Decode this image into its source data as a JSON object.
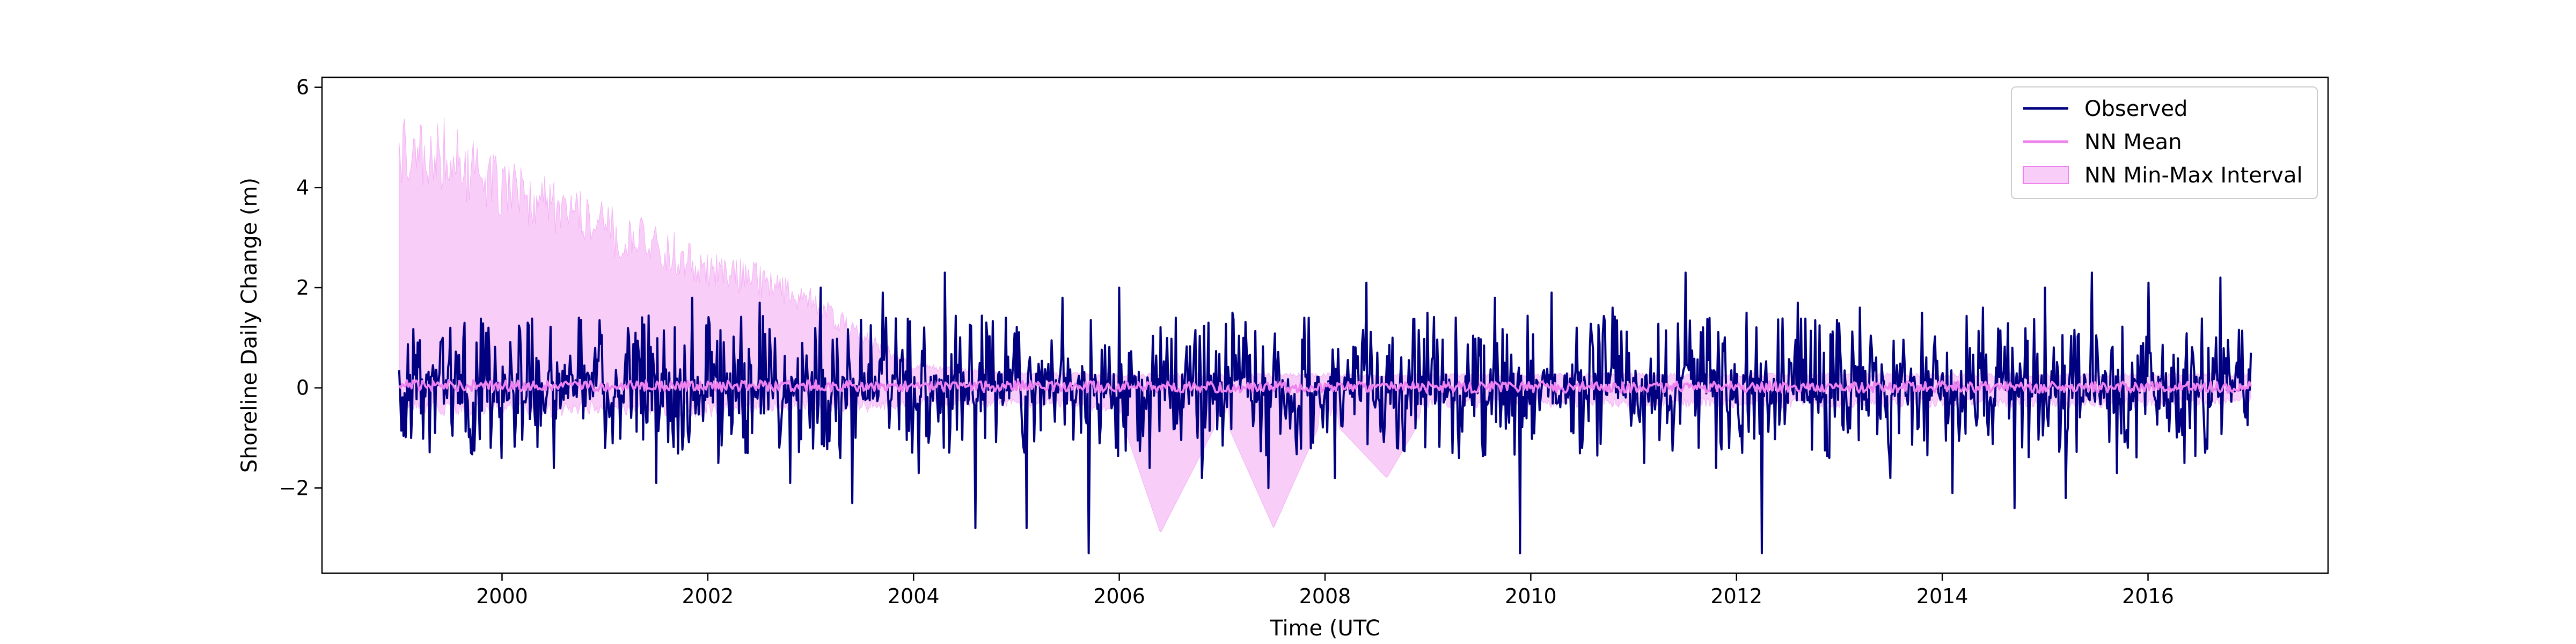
{
  "chart_data": {
    "type": "line",
    "title": "",
    "xlabel": "Time (UTC",
    "ylabel": "Shoreline Daily Change (m)",
    "xlim": [
      1998.25,
      2017.75
    ],
    "ylim": [
      -3.7,
      6.2
    ],
    "x_ticks": [
      2000,
      2002,
      2004,
      2006,
      2008,
      2010,
      2012,
      2014,
      2016
    ],
    "x_tick_labels": [
      "2000",
      "2002",
      "2004",
      "2006",
      "2008",
      "2010",
      "2012",
      "2014",
      "2016"
    ],
    "y_ticks": [
      -2,
      0,
      2,
      4,
      6
    ],
    "y_tick_labels": [
      "−2",
      "0",
      "2",
      "4",
      "6"
    ],
    "grid": false,
    "legend_position": "top-right",
    "data_range": [
      1999.0,
      2017.0
    ],
    "series": [
      {
        "name": "Observed",
        "kind": "line",
        "color": "#000080",
        "x": [
          1999.0,
          1999.2,
          1999.35,
          1999.5,
          1999.7,
          1999.85,
          2000.0,
          2000.25,
          2000.5,
          2000.75,
          2001.0,
          2001.3,
          2001.5,
          2001.85,
          2002.1,
          2002.5,
          2002.8,
          2003.1,
          2003.4,
          2003.7,
          2004.05,
          2004.3,
          2004.6,
          2004.9,
          2005.1,
          2005.45,
          2005.7,
          2006.0,
          2006.3,
          2006.55,
          2006.8,
          2007.1,
          2007.45,
          2007.8,
          2008.1,
          2008.4,
          2008.7,
          2009.0,
          2009.3,
          2009.65,
          2009.9,
          2010.2,
          2010.5,
          2010.8,
          2011.1,
          2011.5,
          2011.8,
          2012.1,
          2012.25,
          2012.6,
          2012.9,
          2013.2,
          2013.5,
          2013.8,
          2014.1,
          2014.4,
          2014.7,
          2015.0,
          2015.2,
          2015.45,
          2015.7,
          2016.0,
          2016.35,
          2016.7,
          2017.0
        ],
        "y": [
          0.35,
          0.95,
          -0.9,
          1.2,
          -1.3,
          1.1,
          -1.4,
          1.3,
          -1.6,
          1.4,
          -1.2,
          1.1,
          -1.9,
          1.8,
          -1.5,
          1.7,
          -1.9,
          2.0,
          -2.3,
          1.9,
          -1.7,
          2.3,
          -2.8,
          1.4,
          -2.8,
          1.8,
          -3.3,
          2.0,
          -1.6,
          1.4,
          -1.8,
          1.5,
          -2.0,
          1.4,
          -1.8,
          2.1,
          -1.2,
          1.5,
          -1.4,
          1.8,
          -3.3,
          1.9,
          -1.2,
          1.6,
          -1.5,
          2.3,
          -1.6,
          1.5,
          -3.3,
          1.7,
          -1.4,
          1.6,
          -1.8,
          1.5,
          -2.1,
          1.6,
          -2.4,
          2.0,
          -2.2,
          2.3,
          -1.7,
          2.1,
          -1.5,
          2.2,
          0.7
        ]
      },
      {
        "name": "NN Mean",
        "kind": "line",
        "color": "#ee82ee",
        "x": [
          1999.0,
          2000.0,
          2001.0,
          2002.0,
          2003.0,
          2004.0,
          2005.0,
          2006.0,
          2007.0,
          2008.0,
          2009.0,
          2010.0,
          2011.0,
          2012.0,
          2013.0,
          2014.0,
          2015.0,
          2016.0,
          2017.0
        ],
        "y": [
          0.05,
          0.04,
          0.05,
          0.03,
          0.04,
          0.02,
          0.03,
          0.02,
          0.01,
          0.02,
          0.01,
          0.02,
          0.01,
          0.02,
          0.01,
          0.02,
          0.01,
          0.02,
          0.01
        ]
      },
      {
        "name": "NN Min-Max Interval",
        "kind": "band",
        "color": "#ee82ee",
        "x": [
          1999.0,
          1999.5,
          2000.0,
          2000.5,
          2001.0,
          2001.5,
          2002.0,
          2002.5,
          2003.0,
          2003.5,
          2004.0,
          2005.0,
          2006.0,
          2006.4,
          2007.0,
          2007.5,
          2008.0,
          2008.6,
          2009.0,
          2010.0,
          2011.0,
          2012.0,
          2013.0,
          2014.0,
          2015.0,
          2016.0,
          2017.0
        ],
        "upper": [
          5.7,
          5.4,
          4.6,
          4.2,
          3.7,
          3.3,
          2.8,
          2.5,
          2.0,
          1.2,
          0.5,
          0.35,
          0.3,
          0.3,
          0.3,
          0.3,
          0.3,
          0.3,
          0.3,
          0.3,
          0.3,
          0.3,
          0.3,
          0.3,
          0.3,
          0.3,
          0.3
        ],
        "lower": [
          -0.4,
          -0.6,
          -0.5,
          -0.6,
          -0.5,
          -0.6,
          -0.6,
          -0.5,
          -0.5,
          -0.5,
          -0.4,
          -0.4,
          -0.5,
          -2.9,
          -0.5,
          -2.8,
          -0.5,
          -1.8,
          -0.4,
          -0.4,
          -0.4,
          -0.4,
          -0.4,
          -0.4,
          -0.4,
          -0.4,
          -0.3
        ]
      }
    ]
  }
}
